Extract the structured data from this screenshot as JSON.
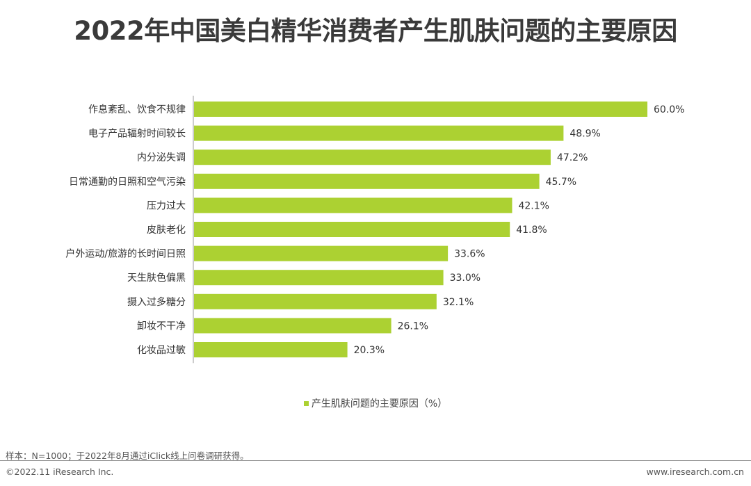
{
  "title": "2022年中国美白精华消费者产生肌肤问题的主要原因",
  "chart_data": {
    "type": "bar",
    "orientation": "horizontal",
    "categories": [
      "作息紊乱、饮食不规律",
      "电子产品辐射时间较长",
      "内分泌失调",
      "日常通勤的日照和空气污染",
      "压力过大",
      "皮肤老化",
      "户外运动/旅游的长时间日照",
      "天生肤色偏黑",
      "摄入过多糖分",
      "卸妆不干净",
      "化妆品过敏"
    ],
    "values": [
      60.0,
      48.9,
      47.2,
      45.7,
      42.1,
      41.8,
      33.6,
      33.0,
      32.1,
      26.1,
      20.3
    ],
    "value_labels": [
      "60.0%",
      "48.9%",
      "47.2%",
      "45.7%",
      "42.1%",
      "41.8%",
      "33.6%",
      "33.0%",
      "32.1%",
      "26.1%",
      "20.3%"
    ],
    "series": [
      {
        "name": "产生肌肤问题的主要原因（%）"
      }
    ],
    "xlim": [
      0,
      60
    ],
    "bar_color": "#acd132",
    "grid": false,
    "legend_position": "bottom-center"
  },
  "legend_label": "产生肌肤问题的主要原因（%）",
  "note": "样本：N=1000；于2022年8月通过iClick线上问卷调研获得。",
  "copyright": "©2022.11 iResearch Inc.",
  "website": "www.iresearch.com.cn"
}
